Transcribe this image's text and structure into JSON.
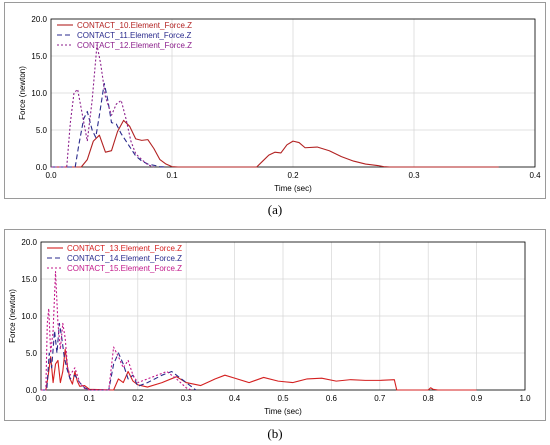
{
  "captions": [
    "(a)",
    "(b)"
  ],
  "chart_data": [
    {
      "type": "line",
      "xlabel": "Time (sec)",
      "ylabel": "Force (newton)",
      "xlim": [
        0.0,
        0.4
      ],
      "ylim": [
        0.0,
        20.0
      ],
      "xticks": [
        "0.0",
        "0.1",
        "0.2",
        "0.3",
        "0.4"
      ],
      "yticks": [
        "0.0",
        "5.0",
        "10.0",
        "15.0",
        "20.0"
      ],
      "grid": true,
      "legend": "top-left",
      "series": [
        {
          "name": "CONTACT_10.Element_Force.Z",
          "color": "#b22222",
          "dash": "",
          "points": [
            [
              0.0,
              0
            ],
            [
              0.025,
              0
            ],
            [
              0.03,
              1.0
            ],
            [
              0.035,
              3.5
            ],
            [
              0.04,
              4.3
            ],
            [
              0.045,
              2.0
            ],
            [
              0.05,
              2.2
            ],
            [
              0.055,
              4.8
            ],
            [
              0.06,
              6.3
            ],
            [
              0.065,
              5.5
            ],
            [
              0.07,
              3.8
            ],
            [
              0.075,
              3.6
            ],
            [
              0.08,
              3.7
            ],
            [
              0.085,
              2.5
            ],
            [
              0.09,
              1.0
            ],
            [
              0.095,
              0.4
            ],
            [
              0.1,
              0.05
            ],
            [
              0.105,
              0
            ],
            [
              0.17,
              0
            ],
            [
              0.175,
              0.8
            ],
            [
              0.18,
              1.6
            ],
            [
              0.185,
              2.0
            ],
            [
              0.19,
              1.9
            ],
            [
              0.195,
              3.0
            ],
            [
              0.2,
              3.5
            ],
            [
              0.205,
              3.3
            ],
            [
              0.21,
              2.6
            ],
            [
              0.22,
              2.7
            ],
            [
              0.23,
              2.2
            ],
            [
              0.24,
              1.4
            ],
            [
              0.25,
              0.8
            ],
            [
              0.26,
              0.4
            ],
            [
              0.27,
              0.2
            ],
            [
              0.275,
              0.05
            ],
            [
              0.28,
              0
            ],
            [
              0.37,
              0
            ]
          ]
        },
        {
          "name": "CONTACT_11.Element_Force.Z",
          "color": "#2a2a8c",
          "dash": "5,3",
          "points": [
            [
              0.0,
              0
            ],
            [
              0.02,
              0
            ],
            [
              0.023,
              3.0
            ],
            [
              0.027,
              6.5
            ],
            [
              0.03,
              7.5
            ],
            [
              0.034,
              5.0
            ],
            [
              0.037,
              4.0
            ],
            [
              0.04,
              7.0
            ],
            [
              0.044,
              11.3
            ],
            [
              0.047,
              9.0
            ],
            [
              0.05,
              6.0
            ],
            [
              0.054,
              5.8
            ],
            [
              0.058,
              4.5
            ],
            [
              0.062,
              3.5
            ],
            [
              0.066,
              2.5
            ],
            [
              0.07,
              1.5
            ],
            [
              0.075,
              0.8
            ],
            [
              0.08,
              0.4
            ],
            [
              0.086,
              0.2
            ],
            [
              0.09,
              0.05
            ],
            [
              0.095,
              0
            ]
          ]
        },
        {
          "name": "CONTACT_12.Element_Force.Z",
          "color": "#8b1e8b",
          "dash": "2,2",
          "points": [
            [
              0.0,
              0
            ],
            [
              0.013,
              0
            ],
            [
              0.016,
              6.0
            ],
            [
              0.019,
              10.0
            ],
            [
              0.022,
              10.5
            ],
            [
              0.026,
              7.0
            ],
            [
              0.03,
              3.5
            ],
            [
              0.034,
              9.0
            ],
            [
              0.038,
              16.5
            ],
            [
              0.041,
              14.0
            ],
            [
              0.045,
              9.5
            ],
            [
              0.05,
              7.0
            ],
            [
              0.054,
              8.5
            ],
            [
              0.058,
              9.0
            ],
            [
              0.062,
              6.5
            ],
            [
              0.066,
              3.5
            ],
            [
              0.07,
              1.8
            ],
            [
              0.075,
              1.0
            ],
            [
              0.08,
              0.3
            ],
            [
              0.085,
              0
            ]
          ]
        }
      ]
    },
    {
      "type": "line",
      "xlabel": "Time (sec)",
      "ylabel": "Force (newton)",
      "xlim": [
        0.0,
        1.0
      ],
      "ylim": [
        0.0,
        20.0
      ],
      "xticks": [
        "0.0",
        "0.1",
        "0.2",
        "0.3",
        "0.4",
        "0.5",
        "0.6",
        "0.7",
        "0.8",
        "0.9",
        "1.0"
      ],
      "yticks": [
        "0.0",
        "5.0",
        "10.0",
        "15.0",
        "20.0"
      ],
      "grid": true,
      "legend": "top-left",
      "series": [
        {
          "name": "CONTACT_13.Element_Force.Z",
          "color": "#d42020",
          "dash": "",
          "points": [
            [
              0.0,
              0
            ],
            [
              0.01,
              0
            ],
            [
              0.015,
              2.0
            ],
            [
              0.02,
              4.5
            ],
            [
              0.025,
              1.0
            ],
            [
              0.03,
              3.5
            ],
            [
              0.035,
              4.0
            ],
            [
              0.04,
              1.0
            ],
            [
              0.045,
              2.5
            ],
            [
              0.05,
              5.5
            ],
            [
              0.055,
              3.0
            ],
            [
              0.06,
              1.5
            ],
            [
              0.065,
              0.8
            ],
            [
              0.07,
              2.5
            ],
            [
              0.075,
              1.2
            ],
            [
              0.08,
              0.5
            ],
            [
              0.09,
              0.6
            ],
            [
              0.1,
              0.1
            ],
            [
              0.15,
              0
            ],
            [
              0.16,
              1.5
            ],
            [
              0.17,
              1.0
            ],
            [
              0.18,
              2.5
            ],
            [
              0.19,
              1.2
            ],
            [
              0.2,
              0.7
            ],
            [
              0.22,
              0.4
            ],
            [
              0.25,
              1.0
            ],
            [
              0.28,
              1.8
            ],
            [
              0.3,
              1.0
            ],
            [
              0.33,
              0.6
            ],
            [
              0.36,
              1.5
            ],
            [
              0.38,
              2.0
            ],
            [
              0.4,
              1.6
            ],
            [
              0.43,
              1.0
            ],
            [
              0.46,
              1.7
            ],
            [
              0.49,
              1.2
            ],
            [
              0.52,
              1.0
            ],
            [
              0.55,
              1.5
            ],
            [
              0.58,
              1.6
            ],
            [
              0.61,
              1.2
            ],
            [
              0.64,
              1.4
            ],
            [
              0.67,
              1.3
            ],
            [
              0.7,
              1.3
            ],
            [
              0.73,
              1.4
            ],
            [
              0.735,
              0
            ],
            [
              0.8,
              0
            ],
            [
              0.805,
              0.3
            ],
            [
              0.81,
              0.1
            ],
            [
              0.82,
              0
            ],
            [
              0.9,
              0
            ]
          ]
        },
        {
          "name": "CONTACT_14.Element_Force.Z",
          "color": "#2a2a8c",
          "dash": "5,3",
          "points": [
            [
              0.0,
              0
            ],
            [
              0.012,
              0
            ],
            [
              0.017,
              5.0
            ],
            [
              0.022,
              3.0
            ],
            [
              0.028,
              8.0
            ],
            [
              0.033,
              5.0
            ],
            [
              0.038,
              9.0
            ],
            [
              0.043,
              7.0
            ],
            [
              0.048,
              4.5
            ],
            [
              0.053,
              3.0
            ],
            [
              0.06,
              1.5
            ],
            [
              0.07,
              2.0
            ],
            [
              0.08,
              1.0
            ],
            [
              0.09,
              0.3
            ],
            [
              0.1,
              0
            ],
            [
              0.14,
              0
            ],
            [
              0.15,
              3.5
            ],
            [
              0.16,
              5.0
            ],
            [
              0.17,
              3.5
            ],
            [
              0.18,
              1.5
            ],
            [
              0.19,
              2.0
            ],
            [
              0.2,
              0.5
            ],
            [
              0.22,
              1.0
            ],
            [
              0.25,
              2.0
            ],
            [
              0.27,
              2.5
            ],
            [
              0.29,
              1.5
            ],
            [
              0.31,
              0.5
            ],
            [
              0.32,
              0
            ]
          ]
        },
        {
          "name": "CONTACT_15.Element_Force.Z",
          "color": "#c2188a",
          "dash": "2,2",
          "points": [
            [
              0.0,
              0
            ],
            [
              0.01,
              0
            ],
            [
              0.013,
              9.0
            ],
            [
              0.016,
              11.0
            ],
            [
              0.02,
              5.0
            ],
            [
              0.025,
              8.0
            ],
            [
              0.03,
              16.0
            ],
            [
              0.035,
              9.0
            ],
            [
              0.04,
              5.5
            ],
            [
              0.045,
              9.0
            ],
            [
              0.05,
              7.0
            ],
            [
              0.055,
              3.0
            ],
            [
              0.06,
              2.0
            ],
            [
              0.07,
              3.0
            ],
            [
              0.08,
              1.0
            ],
            [
              0.09,
              0.2
            ],
            [
              0.1,
              0
            ],
            [
              0.14,
              0
            ],
            [
              0.15,
              5.8
            ],
            [
              0.16,
              4.5
            ],
            [
              0.17,
              3.0
            ],
            [
              0.18,
              4.0
            ],
            [
              0.19,
              2.0
            ],
            [
              0.2,
              1.0
            ],
            [
              0.22,
              1.5
            ],
            [
              0.24,
              2.0
            ],
            [
              0.26,
              2.5
            ],
            [
              0.28,
              1.5
            ],
            [
              0.3,
              0.3
            ],
            [
              0.31,
              0
            ]
          ]
        }
      ]
    }
  ]
}
